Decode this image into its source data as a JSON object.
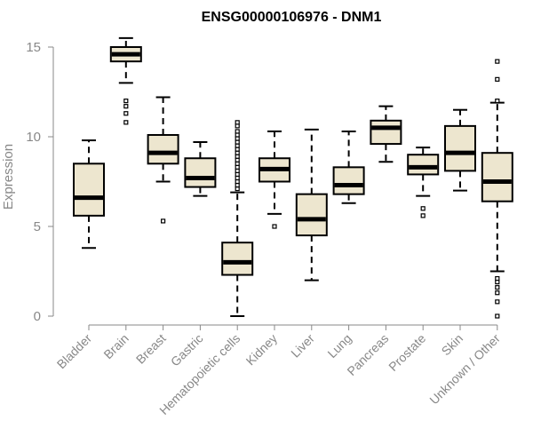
{
  "chart_data": {
    "type": "box",
    "title": "ENSG00000106976 - DNM1",
    "xlabel": "",
    "ylabel": "Expression",
    "ylim": [
      0,
      15.5
    ],
    "yticks": [
      0,
      5,
      10,
      15
    ],
    "grid": false,
    "colors": {
      "box_fill": "#ede6cf",
      "median": "#000000",
      "axis": "#888888"
    },
    "categories": [
      "Bladder",
      "Brain",
      "Breast",
      "Gastric",
      "Hematopoietic cells",
      "Kidney",
      "Liver",
      "Lung",
      "Pancreas",
      "Prostate",
      "Skin",
      "Unknown / Other"
    ],
    "boxes": [
      {
        "min": 3.8,
        "q1": 5.6,
        "median": 6.6,
        "q3": 8.5,
        "max": 9.8,
        "outliers": []
      },
      {
        "min": 13.0,
        "q1": 14.2,
        "median": 14.6,
        "q3": 15.0,
        "max": 15.5,
        "outliers": [
          12.0,
          11.7,
          11.3,
          10.8
        ]
      },
      {
        "min": 7.5,
        "q1": 8.5,
        "median": 9.1,
        "q3": 10.1,
        "max": 12.2,
        "outliers": [
          5.3
        ]
      },
      {
        "min": 6.7,
        "q1": 7.2,
        "median": 7.7,
        "q3": 8.8,
        "max": 9.7,
        "outliers": []
      },
      {
        "min": 0.0,
        "q1": 2.3,
        "median": 3.0,
        "q3": 4.1,
        "max": 6.9,
        "outliers": [
          7.1,
          7.3,
          7.5,
          7.7,
          7.9,
          8.1,
          8.3,
          8.5,
          8.7,
          8.9,
          9.1,
          9.3,
          9.5,
          9.7,
          9.9,
          10.1,
          10.3,
          10.6,
          10.8
        ]
      },
      {
        "min": 5.7,
        "q1": 7.5,
        "median": 8.2,
        "q3": 8.8,
        "max": 10.3,
        "outliers": [
          5.0
        ]
      },
      {
        "min": 2.0,
        "q1": 4.5,
        "median": 5.4,
        "q3": 6.8,
        "max": 10.4,
        "outliers": []
      },
      {
        "min": 6.3,
        "q1": 6.8,
        "median": 7.3,
        "q3": 8.3,
        "max": 10.3,
        "outliers": []
      },
      {
        "min": 8.6,
        "q1": 9.6,
        "median": 10.5,
        "q3": 10.9,
        "max": 11.7,
        "outliers": []
      },
      {
        "min": 6.7,
        "q1": 7.9,
        "median": 8.3,
        "q3": 9.0,
        "max": 9.4,
        "outliers": [
          6.0,
          5.6
        ]
      },
      {
        "min": 7.0,
        "q1": 8.1,
        "median": 9.1,
        "q3": 10.6,
        "max": 11.5,
        "outliers": []
      },
      {
        "min": 2.5,
        "q1": 6.4,
        "median": 7.5,
        "q3": 9.1,
        "max": 11.9,
        "outliers": [
          14.2,
          13.2,
          12.0,
          2.1,
          1.9,
          1.6,
          1.3,
          0.8,
          0.0
        ]
      }
    ]
  }
}
